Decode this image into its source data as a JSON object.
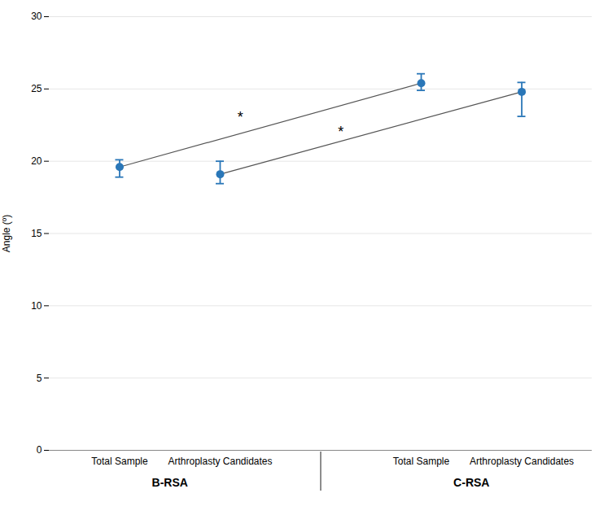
{
  "chart_data": {
    "type": "scatter",
    "categories": [
      "Total Sample",
      "Arthroplasty Candidates",
      "Total Sample",
      "Arthroplasty Candidates"
    ],
    "category_groups": [
      "B-RSA",
      "B-RSA",
      "C-RSA",
      "C-RSA"
    ],
    "values": [
      19.6,
      19.1,
      25.4,
      24.8
    ],
    "error_lower": [
      0.7,
      0.65,
      0.5,
      1.7
    ],
    "error_upper": [
      0.5,
      0.9,
      0.65,
      0.65
    ],
    "color": "#2a77b8",
    "line_color": "#555555",
    "ylabel": "Angle (º)",
    "ylim": [
      0,
      30
    ],
    "yticks": [
      0,
      5,
      10,
      15,
      20,
      25,
      30
    ],
    "grid": true,
    "annotations": [
      {
        "text": "*",
        "series": "Total Sample",
        "y": 22.7
      },
      {
        "text": "*",
        "series": "Arthroplasty Candidates",
        "y": 21.7
      }
    ]
  }
}
